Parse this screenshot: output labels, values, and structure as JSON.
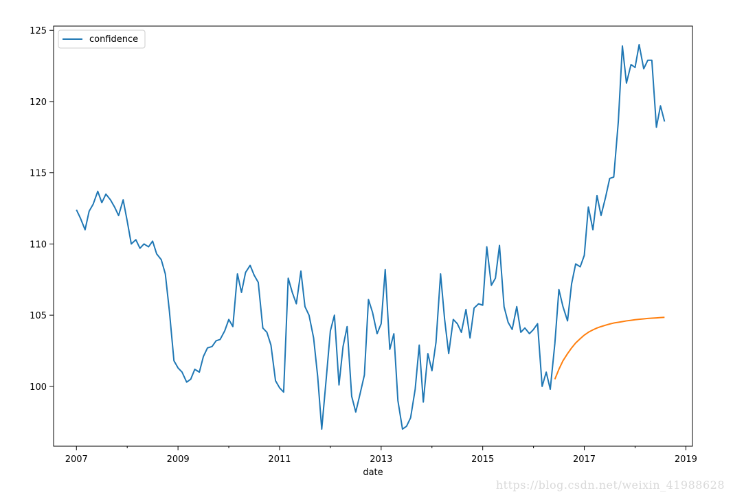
{
  "chart_data": {
    "type": "line",
    "title": "",
    "xlabel": "date",
    "ylabel": "",
    "xlim": [
      2006.55,
      2019.13
    ],
    "ylim": [
      95.8,
      125.3
    ],
    "grid": false,
    "legend": {
      "position": "top-left",
      "entries": [
        "confidence"
      ]
    },
    "x_ticks": [
      2007,
      2009,
      2011,
      2013,
      2015,
      2017,
      2019
    ],
    "y_ticks": [
      100,
      105,
      110,
      115,
      120,
      125
    ],
    "series": [
      {
        "name": "confidence",
        "color": "#1f77b4",
        "x": [
          2007.0,
          2007.08,
          2007.17,
          2007.25,
          2007.33,
          2007.42,
          2007.5,
          2007.58,
          2007.67,
          2007.75,
          2007.83,
          2007.92,
          2008.0,
          2008.08,
          2008.17,
          2008.25,
          2008.33,
          2008.42,
          2008.5,
          2008.58,
          2008.67,
          2008.75,
          2008.83,
          2008.92,
          2009.0,
          2009.08,
          2009.17,
          2009.25,
          2009.33,
          2009.42,
          2009.5,
          2009.58,
          2009.67,
          2009.75,
          2009.83,
          2009.92,
          2010.0,
          2010.08,
          2010.17,
          2010.25,
          2010.33,
          2010.42,
          2010.5,
          2010.58,
          2010.67,
          2010.75,
          2010.83,
          2010.92,
          2011.0,
          2011.08,
          2011.17,
          2011.25,
          2011.33,
          2011.42,
          2011.5,
          2011.58,
          2011.67,
          2011.75,
          2011.83,
          2011.92,
          2012.0,
          2012.08,
          2012.17,
          2012.25,
          2012.33,
          2012.42,
          2012.5,
          2012.58,
          2012.67,
          2012.75,
          2012.83,
          2012.92,
          2013.0,
          2013.08,
          2013.17,
          2013.25,
          2013.33,
          2013.42,
          2013.5,
          2013.58,
          2013.67,
          2013.75,
          2013.83,
          2013.92,
          2014.0,
          2014.08,
          2014.17,
          2014.25,
          2014.33,
          2014.42,
          2014.5,
          2014.58,
          2014.67,
          2014.75,
          2014.83,
          2014.92,
          2015.0,
          2015.08,
          2015.17,
          2015.25,
          2015.33,
          2015.42,
          2015.5,
          2015.58,
          2015.67,
          2015.75,
          2015.83,
          2015.92,
          2016.0,
          2016.08,
          2016.17,
          2016.25,
          2016.33,
          2016.42,
          2016.5,
          2016.58,
          2016.67,
          2016.75,
          2016.83,
          2016.92,
          2017.0,
          2017.08,
          2017.17,
          2017.25,
          2017.33,
          2017.42,
          2017.5,
          2017.58,
          2017.67,
          2017.75,
          2017.83,
          2017.92,
          2018.0,
          2018.08,
          2018.17,
          2018.25,
          2018.33,
          2018.42,
          2018.5,
          2018.58
        ],
        "values": [
          112.4,
          111.8,
          111.0,
          112.3,
          112.8,
          113.7,
          112.9,
          113.5,
          113.1,
          112.6,
          112.0,
          113.1,
          111.6,
          110.0,
          110.3,
          109.7,
          110.0,
          109.8,
          110.2,
          109.3,
          108.9,
          107.9,
          105.3,
          101.8,
          101.3,
          101.0,
          100.3,
          100.5,
          101.2,
          101.0,
          102.1,
          102.7,
          102.8,
          103.2,
          103.3,
          103.9,
          104.7,
          104.2,
          107.9,
          106.6,
          108.0,
          108.5,
          107.8,
          107.3,
          104.1,
          103.8,
          102.9,
          100.4,
          99.9,
          99.6,
          107.6,
          106.6,
          105.8,
          108.1,
          105.6,
          105.0,
          103.4,
          100.7,
          97.0,
          100.6,
          103.9,
          105.0,
          100.1,
          102.8,
          104.2,
          99.3,
          98.2,
          99.4,
          100.8,
          106.1,
          105.2,
          103.7,
          104.4,
          108.2,
          102.6,
          103.7,
          99.0,
          97.0,
          97.2,
          97.8,
          99.8,
          102.9,
          98.9,
          102.3,
          101.1,
          103.1,
          107.9,
          104.7,
          102.3,
          104.7,
          104.4,
          103.8,
          105.4,
          103.4,
          105.5,
          105.8,
          105.7,
          109.8,
          107.1,
          107.6,
          109.9,
          105.6,
          104.5,
          104.0,
          105.6,
          103.8,
          104.1,
          103.7,
          104.0,
          104.4,
          100.0,
          101.0,
          99.8,
          103.0,
          106.8,
          105.6,
          104.6,
          107.2,
          108.6,
          108.4,
          109.2,
          112.6,
          111.0,
          113.4,
          112.0,
          113.3,
          114.6,
          114.7,
          118.6,
          123.9,
          121.3,
          122.6,
          122.4,
          124.0,
          122.3,
          122.9,
          122.9,
          118.2,
          119.7,
          118.6
        ]
      },
      {
        "color": "#ff7f0e",
        "x": [
          2016.42,
          2016.5,
          2016.58,
          2016.67,
          2016.75,
          2016.83,
          2016.92,
          2017.0,
          2017.08,
          2017.17,
          2017.25,
          2017.33,
          2017.42,
          2017.5,
          2017.58,
          2017.67,
          2017.75,
          2017.83,
          2017.92,
          2018.0,
          2018.08,
          2018.17,
          2018.25,
          2018.33,
          2018.42,
          2018.5,
          2018.58
        ],
        "values": [
          100.5,
          101.2,
          101.8,
          102.3,
          102.7,
          103.05,
          103.35,
          103.6,
          103.8,
          103.97,
          104.1,
          104.2,
          104.3,
          104.38,
          104.45,
          104.5,
          104.55,
          104.6,
          104.64,
          104.68,
          104.71,
          104.74,
          104.77,
          104.79,
          104.81,
          104.83,
          104.85
        ]
      }
    ]
  },
  "watermark": "https://blog.csdn.net/weixin_41988628"
}
